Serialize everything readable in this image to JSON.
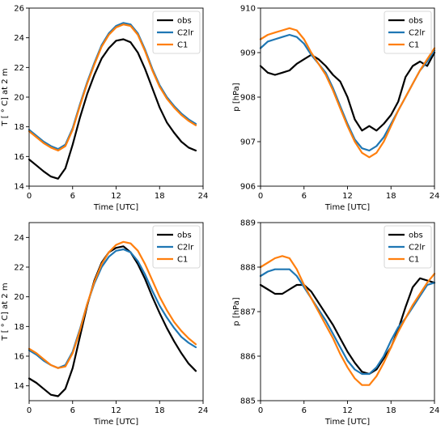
{
  "chart_data": [
    {
      "type": "line",
      "xlabel": "Time [UTC]",
      "ylabel": "T [$^\\circ$C] at 2 m",
      "ylabel_display": "T [ ° C] at 2 m",
      "xlim": [
        0,
        24
      ],
      "ylim": [
        14,
        26
      ],
      "xticks": [
        0,
        6,
        12,
        18,
        24
      ],
      "yticks": [
        14,
        16,
        18,
        20,
        22,
        24,
        26
      ],
      "grid": false,
      "legend": "top-right",
      "colors": {
        "obs": "#000000",
        "C2lr": "#1f77b4",
        "C1": "#ff7f0e"
      },
      "series": [
        {
          "name": "obs",
          "x": [
            0,
            1,
            2,
            3,
            4,
            5,
            6,
            7,
            8,
            9,
            10,
            11,
            12,
            13,
            14,
            15,
            16,
            17,
            18,
            19,
            20,
            21,
            22,
            23
          ],
          "values": [
            15.8,
            15.4,
            15.0,
            14.65,
            14.5,
            15.2,
            16.8,
            18.6,
            20.2,
            21.5,
            22.6,
            23.3,
            23.8,
            23.9,
            23.7,
            23.0,
            21.9,
            20.6,
            19.3,
            18.3,
            17.6,
            17.0,
            16.6,
            16.4
          ]
        },
        {
          "name": "C2lr",
          "x": [
            0,
            1,
            2,
            3,
            4,
            5,
            6,
            7,
            8,
            9,
            10,
            11,
            12,
            13,
            14,
            15,
            16,
            17,
            18,
            19,
            20,
            21,
            22,
            23
          ],
          "values": [
            17.8,
            17.4,
            17.0,
            16.7,
            16.5,
            16.8,
            17.9,
            19.5,
            21.0,
            22.3,
            23.5,
            24.3,
            24.8,
            25.0,
            24.9,
            24.3,
            23.2,
            21.9,
            20.8,
            20.0,
            19.4,
            18.9,
            18.5,
            18.2
          ]
        },
        {
          "name": "C1",
          "x": [
            0,
            1,
            2,
            3,
            4,
            5,
            6,
            7,
            8,
            9,
            10,
            11,
            12,
            13,
            14,
            15,
            16,
            17,
            18,
            19,
            20,
            21,
            22,
            23
          ],
          "values": [
            17.7,
            17.3,
            16.9,
            16.6,
            16.4,
            16.7,
            17.8,
            19.4,
            20.9,
            22.2,
            23.4,
            24.2,
            24.7,
            24.9,
            24.8,
            24.2,
            23.1,
            21.8,
            20.7,
            19.9,
            19.3,
            18.8,
            18.4,
            18.1
          ]
        }
      ]
    },
    {
      "type": "line",
      "xlabel": "Time [UTC]",
      "ylabel": "p [hPa]",
      "xlim": [
        0,
        24
      ],
      "ylim": [
        906,
        910
      ],
      "xticks": [
        0,
        6,
        12,
        18,
        24
      ],
      "yticks": [
        906,
        907,
        908,
        909,
        910
      ],
      "grid": false,
      "legend": "top-right",
      "colors": {
        "obs": "#000000",
        "C2lr": "#1f77b4",
        "C1": "#ff7f0e"
      },
      "series": [
        {
          "name": "obs",
          "x": [
            0,
            1,
            2,
            3,
            4,
            5,
            6,
            7,
            8,
            9,
            10,
            11,
            12,
            13,
            14,
            15,
            16,
            17,
            18,
            19,
            20,
            21,
            22,
            23,
            24
          ],
          "values": [
            908.7,
            908.55,
            908.5,
            908.55,
            908.6,
            908.75,
            908.85,
            908.95,
            908.85,
            908.7,
            908.5,
            908.35,
            908.0,
            907.5,
            907.25,
            907.35,
            907.25,
            907.4,
            907.6,
            907.9,
            908.45,
            908.7,
            908.8,
            908.7,
            909.0
          ]
        },
        {
          "name": "C2lr",
          "x": [
            0,
            1,
            2,
            3,
            4,
            5,
            6,
            7,
            8,
            9,
            10,
            11,
            12,
            13,
            14,
            15,
            16,
            17,
            18,
            19,
            20,
            21,
            22,
            23,
            24
          ],
          "values": [
            909.1,
            909.25,
            909.3,
            909.35,
            909.4,
            909.35,
            909.2,
            908.95,
            908.75,
            908.55,
            908.2,
            907.8,
            907.4,
            907.05,
            906.85,
            906.8,
            906.9,
            907.1,
            907.4,
            907.7,
            908.0,
            908.3,
            908.6,
            908.8,
            909.05
          ]
        },
        {
          "name": "C1",
          "x": [
            0,
            1,
            2,
            3,
            4,
            5,
            6,
            7,
            8,
            9,
            10,
            11,
            12,
            13,
            14,
            15,
            16,
            17,
            18,
            19,
            20,
            21,
            22,
            23,
            24
          ],
          "values": [
            909.3,
            909.4,
            909.45,
            909.5,
            909.55,
            909.5,
            909.3,
            909.0,
            908.75,
            908.5,
            908.15,
            907.75,
            907.35,
            907.0,
            906.75,
            906.65,
            906.75,
            907.0,
            907.35,
            907.7,
            908.0,
            908.3,
            908.6,
            908.85,
            909.1
          ]
        }
      ]
    },
    {
      "type": "line",
      "xlabel": "Time [UTC]",
      "ylabel": "T [$^\\circ$C] at 2 m",
      "ylabel_display": "T [ ° C] at 2 m",
      "xlim": [
        0,
        24
      ],
      "ylim": [
        13,
        25
      ],
      "xticks": [
        0,
        6,
        12,
        18,
        24
      ],
      "yticks": [
        14,
        16,
        18,
        20,
        22,
        24
      ],
      "grid": false,
      "legend": "top-right",
      "colors": {
        "obs": "#000000",
        "C2lr": "#1f77b4",
        "C1": "#ff7f0e"
      },
      "series": [
        {
          "name": "obs",
          "x": [
            0,
            1,
            2,
            3,
            4,
            5,
            6,
            7,
            8,
            9,
            10,
            11,
            12,
            13,
            14,
            15,
            16,
            17,
            18,
            19,
            20,
            21,
            22,
            23
          ],
          "values": [
            14.5,
            14.2,
            13.8,
            13.4,
            13.3,
            13.8,
            15.2,
            17.3,
            19.4,
            21.1,
            22.3,
            23.0,
            23.3,
            23.4,
            23.0,
            22.2,
            21.2,
            20.0,
            18.9,
            17.9,
            17.0,
            16.2,
            15.5,
            15.0
          ]
        },
        {
          "name": "C2lr",
          "x": [
            0,
            1,
            2,
            3,
            4,
            5,
            6,
            7,
            8,
            9,
            10,
            11,
            12,
            13,
            14,
            15,
            16,
            17,
            18,
            19,
            20,
            21,
            22,
            23
          ],
          "values": [
            16.4,
            16.1,
            15.7,
            15.4,
            15.2,
            15.4,
            16.3,
            17.8,
            19.5,
            20.9,
            22.0,
            22.7,
            23.1,
            23.2,
            23.0,
            22.4,
            21.5,
            20.4,
            19.4,
            18.6,
            17.9,
            17.3,
            16.9,
            16.6
          ]
        },
        {
          "name": "C1",
          "x": [
            0,
            1,
            2,
            3,
            4,
            5,
            6,
            7,
            8,
            9,
            10,
            11,
            12,
            13,
            14,
            15,
            16,
            17,
            18,
            19,
            20,
            21,
            22,
            23
          ],
          "values": [
            16.5,
            16.2,
            15.8,
            15.4,
            15.2,
            15.3,
            16.2,
            17.7,
            19.5,
            21.0,
            22.2,
            23.0,
            23.5,
            23.7,
            23.6,
            23.1,
            22.2,
            21.1,
            20.0,
            19.1,
            18.3,
            17.7,
            17.2,
            16.8
          ]
        }
      ]
    },
    {
      "type": "line",
      "xlabel": "Time [UTC]",
      "ylabel": "p [hPa]",
      "xlim": [
        0,
        24
      ],
      "ylim": [
        885,
        889
      ],
      "xticks": [
        0,
        6,
        12,
        18,
        24
      ],
      "yticks": [
        885,
        886,
        887,
        888,
        889
      ],
      "grid": false,
      "legend": "top-right",
      "colors": {
        "obs": "#000000",
        "C2lr": "#1f77b4",
        "C1": "#ff7f0e"
      },
      "series": [
        {
          "name": "obs",
          "x": [
            0,
            1,
            2,
            3,
            4,
            5,
            6,
            7,
            8,
            9,
            10,
            11,
            12,
            13,
            14,
            15,
            16,
            17,
            18,
            19,
            20,
            21,
            22,
            23,
            24
          ],
          "values": [
            887.6,
            887.5,
            887.4,
            887.4,
            887.5,
            887.6,
            887.6,
            887.45,
            887.2,
            886.95,
            886.7,
            886.4,
            886.1,
            885.85,
            885.65,
            885.6,
            885.7,
            885.95,
            886.2,
            886.6,
            887.1,
            887.55,
            887.75,
            887.7,
            887.65
          ]
        },
        {
          "name": "C2lr",
          "x": [
            0,
            1,
            2,
            3,
            4,
            5,
            6,
            7,
            8,
            9,
            10,
            11,
            12,
            13,
            14,
            15,
            16,
            17,
            18,
            19,
            20,
            21,
            22,
            23,
            24
          ],
          "values": [
            887.8,
            887.9,
            887.95,
            887.95,
            887.95,
            887.8,
            887.55,
            887.3,
            887.05,
            886.8,
            886.5,
            886.2,
            885.9,
            885.7,
            885.6,
            885.6,
            885.75,
            886.0,
            886.35,
            886.65,
            886.85,
            887.1,
            887.35,
            887.6,
            887.65
          ]
        },
        {
          "name": "C1",
          "x": [
            0,
            1,
            2,
            3,
            4,
            5,
            6,
            7,
            8,
            9,
            10,
            11,
            12,
            13,
            14,
            15,
            16,
            17,
            18,
            19,
            20,
            21,
            22,
            23,
            24
          ],
          "values": [
            888.0,
            888.1,
            888.2,
            888.25,
            888.2,
            887.95,
            887.6,
            887.3,
            887.0,
            886.7,
            886.4,
            886.05,
            885.75,
            885.5,
            885.35,
            885.35,
            885.55,
            885.85,
            886.2,
            886.55,
            886.85,
            887.15,
            887.4,
            887.65,
            887.85
          ]
        }
      ]
    }
  ]
}
